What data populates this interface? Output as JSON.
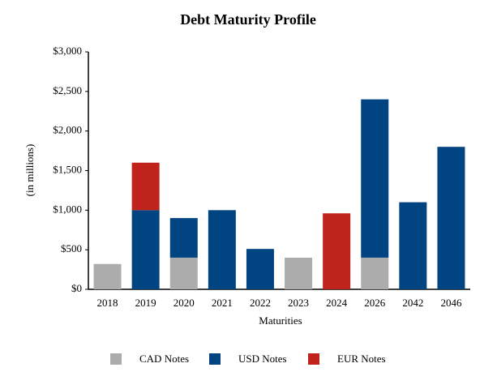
{
  "chart_data": {
    "type": "stacked_bar",
    "title": "Debt Maturity Profile",
    "y_label": "(in millions)",
    "x_label": "Maturities",
    "categories": [
      "2018",
      "2019",
      "2020",
      "2021",
      "2022",
      "2023",
      "2024",
      "2026",
      "2042",
      "2046"
    ],
    "series": [
      {
        "name": "CAD Notes",
        "color": "#acacac",
        "values": [
          320,
          null,
          400,
          null,
          null,
          400,
          null,
          400,
          null,
          null
        ]
      },
      {
        "name": "USD Notes",
        "color": "#004481",
        "values": [
          null,
          1000,
          500,
          1000,
          510,
          null,
          null,
          2000,
          1100,
          1800
        ]
      },
      {
        "name": "EUR Notes",
        "color": "#c0231b",
        "values": [
          null,
          600,
          null,
          null,
          null,
          null,
          960,
          null,
          null,
          null
        ]
      }
    ],
    "ylim": [
      0,
      3000
    ],
    "yticks": [
      {
        "value": 0,
        "label": "$0"
      },
      {
        "value": 500,
        "label": "$500"
      },
      {
        "value": 1000,
        "label": "$1,000"
      },
      {
        "value": 1500,
        "label": "$1,500"
      },
      {
        "value": 2000,
        "label": "$2,000"
      },
      {
        "value": 2500,
        "label": "$2,500"
      },
      {
        "value": 3000,
        "label": "$3,000"
      }
    ],
    "legend": "bottom"
  }
}
